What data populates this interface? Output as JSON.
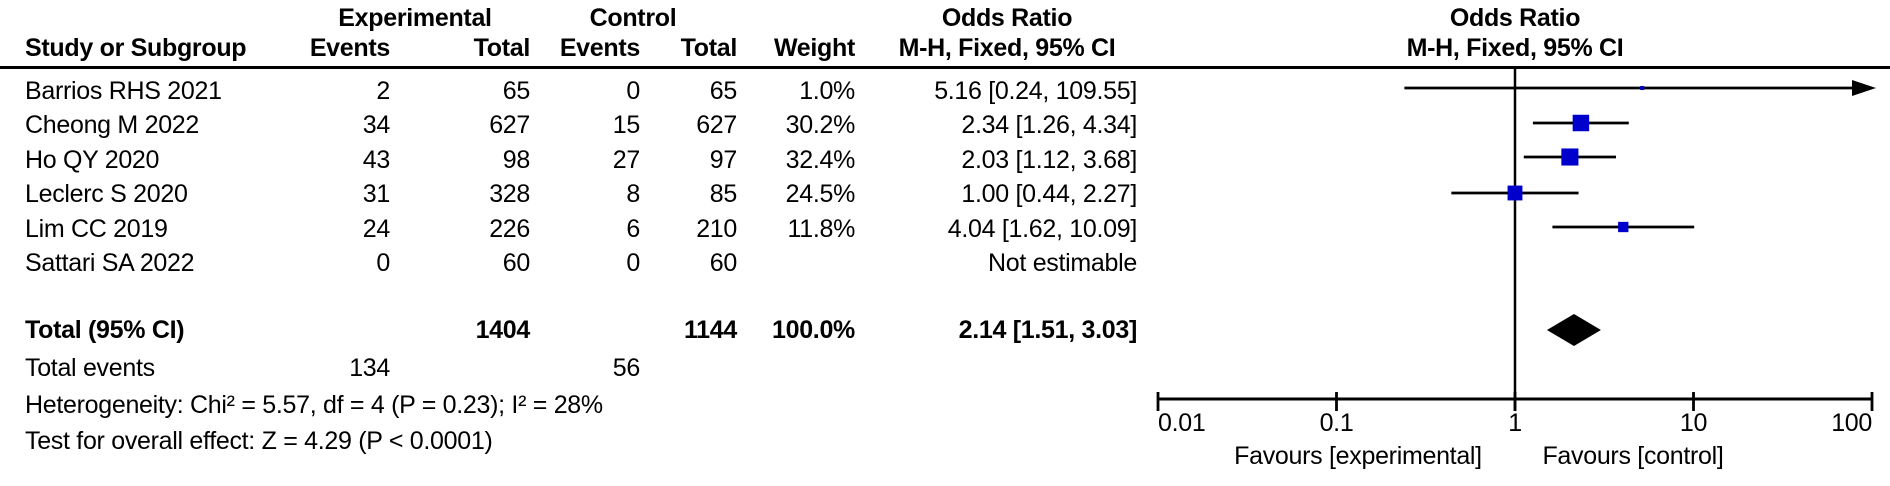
{
  "header": {
    "experimental": "Experimental",
    "control": "Control",
    "odds_ratio": "Odds Ratio",
    "odds_ratio_plot": "Odds Ratio",
    "study": "Study or Subgroup",
    "events": "Events",
    "total": "Total",
    "events2": "Events",
    "total2": "Total",
    "weight": "Weight",
    "mh_ci": "M-H, Fixed, 95% CI",
    "mh_ci_plot": "M-H, Fixed, 95% CI"
  },
  "rows": [
    {
      "study": "Barrios RHS 2021",
      "exp_events": "2",
      "exp_total": "65",
      "ctrl_events": "0",
      "ctrl_total": "65",
      "weight": "1.0%",
      "ci": "5.16 [0.24, 109.55]"
    },
    {
      "study": "Cheong M 2022",
      "exp_events": "34",
      "exp_total": "627",
      "ctrl_events": "15",
      "ctrl_total": "627",
      "weight": "30.2%",
      "ci": "2.34 [1.26, 4.34]"
    },
    {
      "study": "Ho QY 2020",
      "exp_events": "43",
      "exp_total": "98",
      "ctrl_events": "27",
      "ctrl_total": "97",
      "weight": "32.4%",
      "ci": "2.03 [1.12, 3.68]"
    },
    {
      "study": "Leclerc S 2020",
      "exp_events": "31",
      "exp_total": "328",
      "ctrl_events": "8",
      "ctrl_total": "85",
      "weight": "24.5%",
      "ci": "1.00 [0.44, 2.27]"
    },
    {
      "study": "Lim CC 2019",
      "exp_events": "24",
      "exp_total": "226",
      "ctrl_events": "6",
      "ctrl_total": "210",
      "weight": "11.8%",
      "ci": "4.04 [1.62, 10.09]"
    },
    {
      "study": "Sattari SA 2022",
      "exp_events": "0",
      "exp_total": "60",
      "ctrl_events": "0",
      "ctrl_total": "60",
      "weight": "",
      "ci": "Not estimable"
    }
  ],
  "totals": {
    "label": "Total (95% CI)",
    "exp_total": "1404",
    "ctrl_total": "1144",
    "weight": "100.0%",
    "ci": "2.14 [1.51, 3.03]"
  },
  "total_events": {
    "label": "Total events",
    "exp": "134",
    "ctrl": "56"
  },
  "footer": {
    "heterogeneity": "Heterogeneity: Chi² = 5.57, df = 4 (P = 0.23); I² = 28%",
    "overall_effect": "Test for overall effect: Z = 4.29 (P < 0.0001)"
  },
  "chart_data": {
    "type": "forest",
    "effect_measure": "Odds Ratio, M-H, Fixed, 95% CI",
    "x_axis": {
      "scale": "log10",
      "min": 0.01,
      "max": 100,
      "ticks": [
        0.01,
        0.1,
        1,
        10,
        100
      ],
      "tick_labels": [
        "0.01",
        "0.1",
        "1",
        "10",
        "100"
      ],
      "null_line": 1
    },
    "favours_left": "Favours [experimental]",
    "favours_right": "Favours [control]",
    "marker_color": "#0000CC",
    "diamond_color": "#000000",
    "line_color": "#000000",
    "studies": [
      {
        "name": "Barrios RHS 2021",
        "or": 5.16,
        "ci_low": 0.24,
        "ci_high": 109.55,
        "weight_pct": 1.0,
        "arrow_high": true,
        "not_estimable": false
      },
      {
        "name": "Cheong M 2022",
        "or": 2.34,
        "ci_low": 1.26,
        "ci_high": 4.34,
        "weight_pct": 30.2,
        "arrow_high": false,
        "not_estimable": false
      },
      {
        "name": "Ho QY 2020",
        "or": 2.03,
        "ci_low": 1.12,
        "ci_high": 3.68,
        "weight_pct": 32.4,
        "arrow_high": false,
        "not_estimable": false
      },
      {
        "name": "Leclerc S 2020",
        "or": 1.0,
        "ci_low": 0.44,
        "ci_high": 2.27,
        "weight_pct": 24.5,
        "arrow_high": false,
        "not_estimable": false
      },
      {
        "name": "Lim CC 2019",
        "or": 4.04,
        "ci_low": 1.62,
        "ci_high": 10.09,
        "weight_pct": 11.8,
        "arrow_high": false,
        "not_estimable": false
      },
      {
        "name": "Sattari SA 2022",
        "or": null,
        "ci_low": null,
        "ci_high": null,
        "weight_pct": null,
        "arrow_high": false,
        "not_estimable": true
      }
    ],
    "total": {
      "label": "Total (95% CI)",
      "or": 2.14,
      "ci_low": 1.51,
      "ci_high": 3.03
    }
  }
}
